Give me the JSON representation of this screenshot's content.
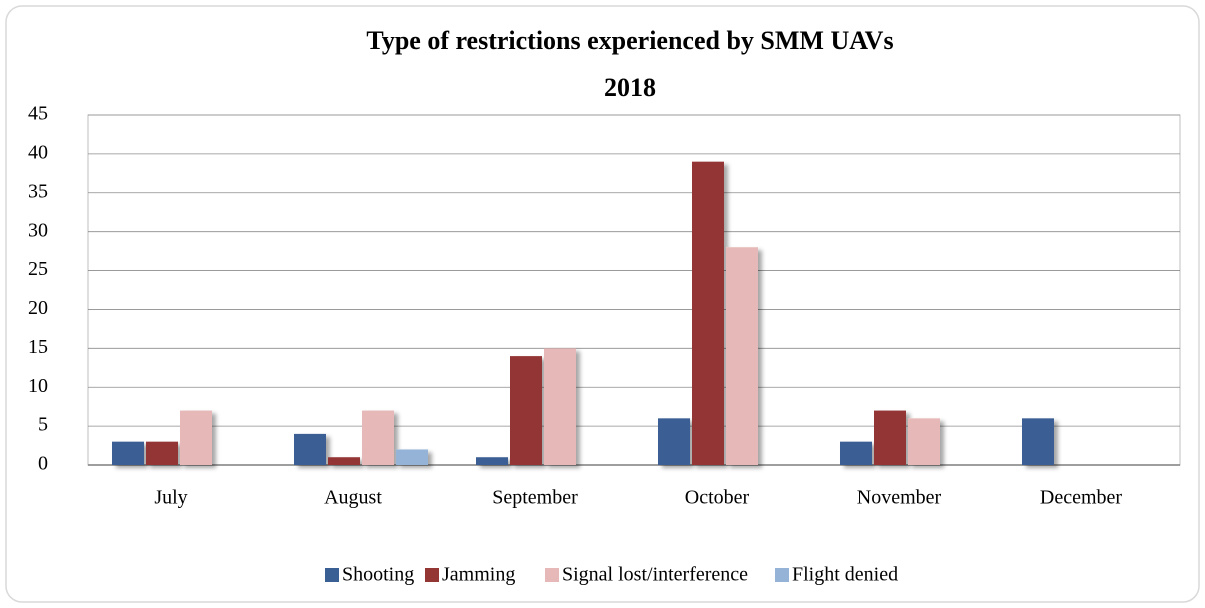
{
  "chart_data": {
    "type": "bar",
    "title": "Type of restrictions experienced by SMM UAVs",
    "subtitle": "2018",
    "categories": [
      "July",
      "August",
      "September",
      "October",
      "November",
      "December"
    ],
    "series": [
      {
        "name": "Shooting",
        "color": "#3a5f94",
        "values": [
          3,
          4,
          1,
          6,
          3,
          6
        ]
      },
      {
        "name": "Jamming",
        "color": "#943634",
        "values": [
          3,
          1,
          14,
          39,
          7,
          0
        ]
      },
      {
        "name": "Signal lost/interference",
        "color": "#e6b9b8",
        "values": [
          7,
          7,
          15,
          28,
          6,
          0
        ]
      },
      {
        "name": "Flight denied",
        "color": "#95b3d7",
        "values": [
          0,
          2,
          0,
          0,
          0,
          0
        ]
      }
    ],
    "ylim": [
      0,
      45
    ],
    "yticks": [
      0,
      5,
      10,
      15,
      20,
      25,
      30,
      35,
      40,
      45
    ],
    "grid": true,
    "legend": "bottom"
  }
}
